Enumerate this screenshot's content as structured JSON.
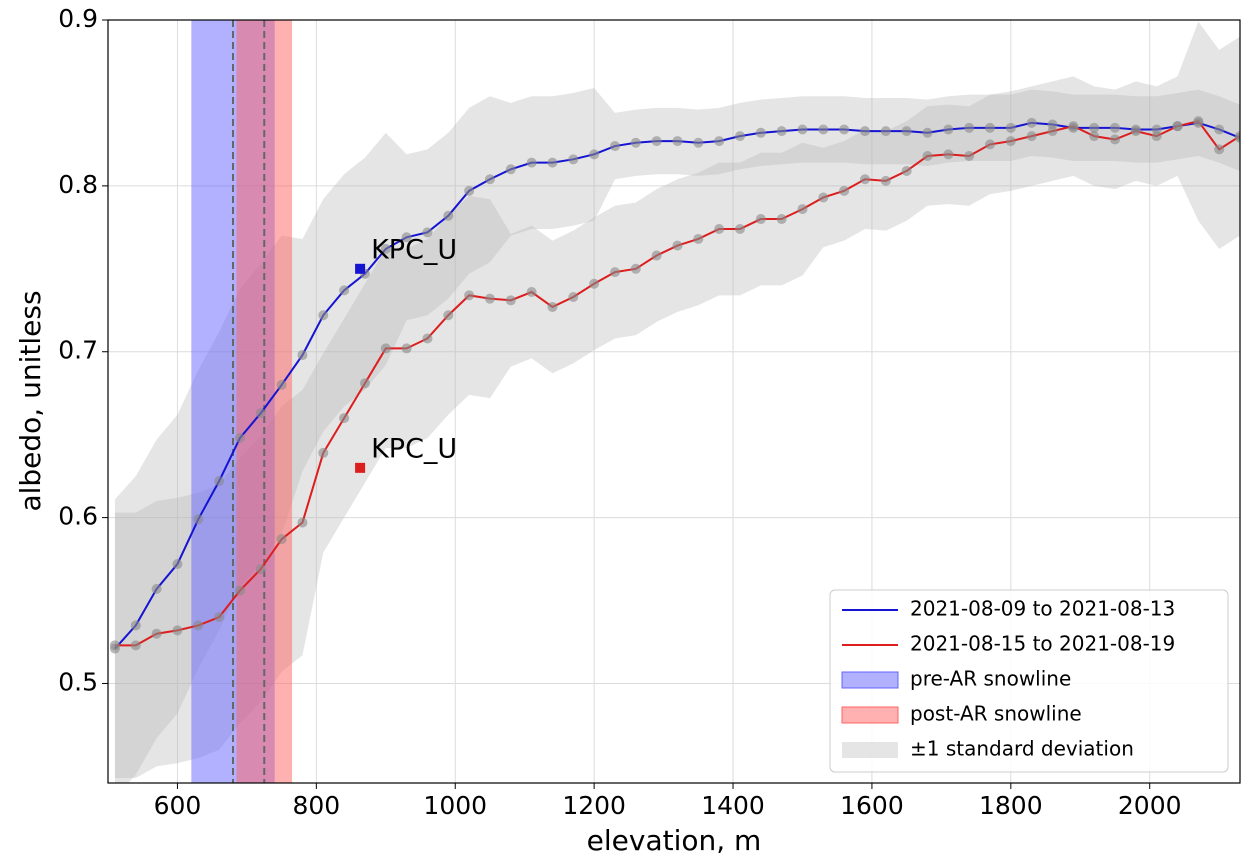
{
  "chart_data": {
    "type": "line",
    "xlabel": "elevation, m",
    "ylabel": "albedo, unitless",
    "xlim": [
      500,
      2130
    ],
    "ylim": [
      0.44,
      0.9
    ],
    "xticks": [
      600,
      800,
      1000,
      1200,
      1400,
      1600,
      1800,
      2000
    ],
    "yticks": [
      0.5,
      0.6,
      0.7,
      0.8,
      0.9
    ],
    "grid": true,
    "legend": "lower right",
    "marker_color": "#888888",
    "x": [
      510,
      540,
      570,
      600,
      630,
      660,
      690,
      720,
      750,
      780,
      810,
      840,
      870,
      900,
      930,
      960,
      990,
      1020,
      1050,
      1080,
      1110,
      1140,
      1170,
      1200,
      1230,
      1260,
      1290,
      1320,
      1350,
      1380,
      1410,
      1440,
      1470,
      1500,
      1530,
      1560,
      1590,
      1620,
      1650,
      1680,
      1710,
      1740,
      1770,
      1800,
      1830,
      1860,
      1890,
      1920,
      1950,
      1980,
      2010,
      2040,
      2070,
      2100,
      2130
    ],
    "series": [
      {
        "name": "2021-08-09 to 2021-08-13",
        "color": "#1414d2",
        "values": [
          0.521,
          0.535,
          0.557,
          0.572,
          0.599,
          0.622,
          0.648,
          0.663,
          0.68,
          0.698,
          0.722,
          0.737,
          0.747,
          0.762,
          0.769,
          0.772,
          0.782,
          0.797,
          0.804,
          0.81,
          0.814,
          0.814,
          0.816,
          0.819,
          0.824,
          0.826,
          0.827,
          0.827,
          0.826,
          0.827,
          0.83,
          0.832,
          0.833,
          0.834,
          0.834,
          0.834,
          0.833,
          0.833,
          0.833,
          0.832,
          0.834,
          0.835,
          0.835,
          0.835,
          0.838,
          0.837,
          0.835,
          0.835,
          0.835,
          0.834,
          0.834,
          0.836,
          0.838,
          0.834,
          0.829
        ],
        "upper": [
          0.611,
          0.625,
          0.647,
          0.662,
          0.689,
          0.712,
          0.738,
          0.753,
          0.77,
          0.768,
          0.792,
          0.807,
          0.817,
          0.832,
          0.819,
          0.822,
          0.832,
          0.847,
          0.854,
          0.85,
          0.854,
          0.854,
          0.856,
          0.859,
          0.844,
          0.846,
          0.847,
          0.847,
          0.846,
          0.847,
          0.85,
          0.852,
          0.853,
          0.854,
          0.854,
          0.854,
          0.853,
          0.853,
          0.853,
          0.852,
          0.854,
          0.855,
          0.855,
          0.855,
          0.858,
          0.857,
          0.855,
          0.855,
          0.855,
          0.854,
          0.854,
          0.856,
          0.858,
          0.854,
          0.849
        ],
        "lower": [
          0.431,
          0.445,
          0.467,
          0.482,
          0.509,
          0.532,
          0.558,
          0.573,
          0.59,
          0.628,
          0.652,
          0.667,
          0.677,
          0.692,
          0.719,
          0.722,
          0.732,
          0.747,
          0.754,
          0.77,
          0.774,
          0.774,
          0.776,
          0.779,
          0.804,
          0.806,
          0.807,
          0.807,
          0.806,
          0.807,
          0.81,
          0.812,
          0.813,
          0.814,
          0.814,
          0.814,
          0.813,
          0.813,
          0.813,
          0.812,
          0.814,
          0.815,
          0.815,
          0.815,
          0.818,
          0.817,
          0.815,
          0.815,
          0.815,
          0.814,
          0.814,
          0.816,
          0.818,
          0.814,
          0.809
        ]
      },
      {
        "name": "2021-08-15 to 2021-08-19",
        "color": "#dc1e1e",
        "values": [
          0.523,
          0.523,
          0.53,
          0.532,
          0.535,
          0.54,
          0.556,
          0.569,
          0.587,
          0.597,
          0.639,
          0.66,
          0.681,
          0.702,
          0.702,
          0.708,
          0.722,
          0.734,
          0.732,
          0.731,
          0.736,
          0.727,
          0.733,
          0.741,
          0.748,
          0.75,
          0.758,
          0.764,
          0.768,
          0.774,
          0.774,
          0.78,
          0.78,
          0.786,
          0.793,
          0.797,
          0.804,
          0.803,
          0.809,
          0.818,
          0.819,
          0.818,
          0.825,
          0.827,
          0.83,
          0.833,
          0.836,
          0.83,
          0.828,
          0.833,
          0.83,
          0.836,
          0.839,
          0.822,
          0.83
        ],
        "upper": [
          0.603,
          0.603,
          0.61,
          0.612,
          0.615,
          0.62,
          0.636,
          0.649,
          0.667,
          0.677,
          0.699,
          0.72,
          0.741,
          0.762,
          0.762,
          0.768,
          0.782,
          0.794,
          0.792,
          0.771,
          0.776,
          0.767,
          0.773,
          0.781,
          0.788,
          0.79,
          0.798,
          0.804,
          0.808,
          0.814,
          0.814,
          0.82,
          0.82,
          0.826,
          0.823,
          0.827,
          0.834,
          0.833,
          0.839,
          0.848,
          0.849,
          0.848,
          0.855,
          0.857,
          0.86,
          0.863,
          0.866,
          0.86,
          0.858,
          0.863,
          0.86,
          0.866,
          0.899,
          0.882,
          0.89
        ],
        "lower": [
          0.443,
          0.443,
          0.45,
          0.452,
          0.455,
          0.46,
          0.476,
          0.489,
          0.507,
          0.517,
          0.579,
          0.6,
          0.621,
          0.642,
          0.642,
          0.648,
          0.662,
          0.674,
          0.672,
          0.691,
          0.696,
          0.687,
          0.693,
          0.701,
          0.708,
          0.71,
          0.718,
          0.724,
          0.728,
          0.734,
          0.734,
          0.74,
          0.74,
          0.746,
          0.763,
          0.767,
          0.774,
          0.773,
          0.779,
          0.788,
          0.789,
          0.788,
          0.795,
          0.797,
          0.8,
          0.803,
          0.806,
          0.8,
          0.798,
          0.803,
          0.8,
          0.806,
          0.779,
          0.762,
          0.77
        ]
      }
    ],
    "std_band": {
      "name": "±1 standard deviation",
      "color": "#b4b4b4"
    },
    "spans": [
      {
        "name": "pre-AR snowline",
        "range": [
          620,
          740
        ],
        "mean": 680,
        "color": "#6464ff"
      },
      {
        "name": "post-AR snowline",
        "range": [
          685,
          765
        ],
        "mean": 725,
        "color": "#ff6464"
      }
    ],
    "annotations": [
      {
        "text": "KPC_U",
        "x": 863,
        "y": 0.75,
        "color": "#1414d2"
      },
      {
        "text": "KPC_U",
        "x": 863,
        "y": 0.63,
        "color": "#dc1e1e"
      }
    ]
  }
}
